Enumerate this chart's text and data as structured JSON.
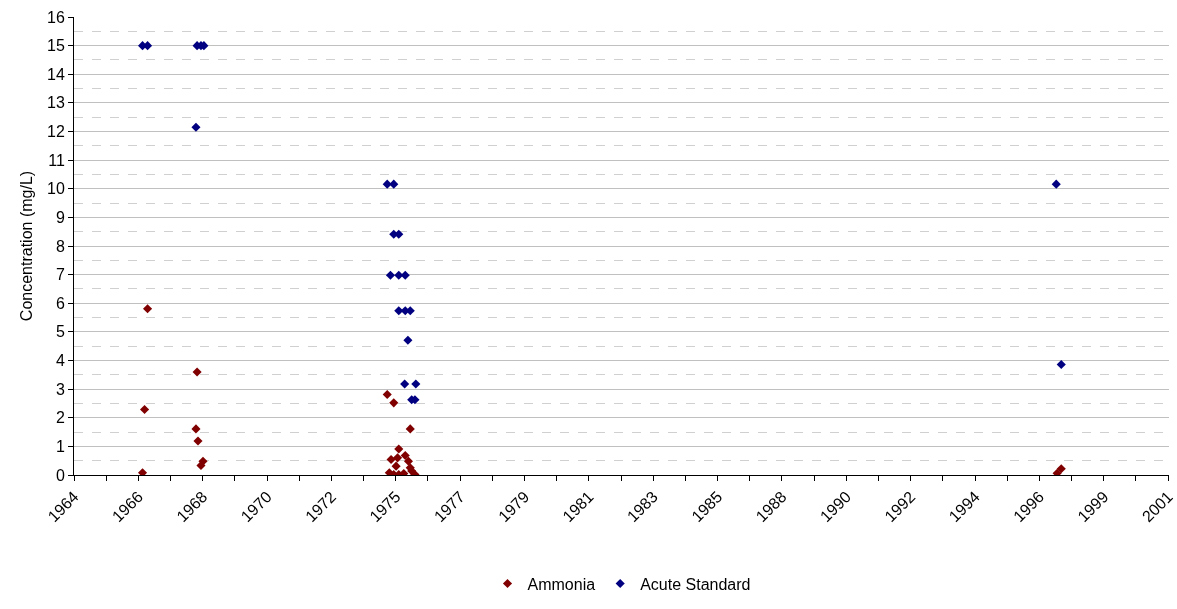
{
  "chart_data": {
    "type": "scatter",
    "ylabel": "Concentration (mg/L)",
    "xlim": [
      "1964-02-24",
      "2001-03-28"
    ],
    "xticks": [
      {
        "value": "1964-02-24",
        "label": "1964"
      },
      {
        "value": "1965-03-29",
        "label": null
      },
      {
        "value": "1966-04-30",
        "label": "1966"
      },
      {
        "value": "1967-06-02",
        "label": null
      },
      {
        "value": "1968-07-05",
        "label": "1968"
      },
      {
        "value": "1969-08-07",
        "label": null
      },
      {
        "value": "1970-09-09",
        "label": "1970"
      },
      {
        "value": "1971-10-12",
        "label": null
      },
      {
        "value": "1972-11-13",
        "label": "1972"
      },
      {
        "value": "1973-12-16",
        "label": null
      },
      {
        "value": "1975-01-18",
        "label": "1975"
      },
      {
        "value": "1976-02-20",
        "label": null
      },
      {
        "value": "1977-03-25",
        "label": "1977"
      },
      {
        "value": "1978-04-27",
        "label": null
      },
      {
        "value": "1979-05-30",
        "label": "1979"
      },
      {
        "value": "1980-07-01",
        "label": null
      },
      {
        "value": "1981-08-03",
        "label": "1981"
      },
      {
        "value": "1982-09-05",
        "label": null
      },
      {
        "value": "1983-10-08",
        "label": "1983"
      },
      {
        "value": "1984-11-10",
        "label": null
      },
      {
        "value": "1985-12-13",
        "label": "1985"
      },
      {
        "value": "1987-01-15",
        "label": null
      },
      {
        "value": "1988-02-17",
        "label": "1988"
      },
      {
        "value": "1989-03-21",
        "label": null
      },
      {
        "value": "1990-04-23",
        "label": "1990"
      },
      {
        "value": "1991-05-26",
        "label": null
      },
      {
        "value": "1992-06-27",
        "label": "1992"
      },
      {
        "value": "1993-07-31",
        "label": null
      },
      {
        "value": "1994-09-02",
        "label": "1994"
      },
      {
        "value": "1995-10-04",
        "label": null
      },
      {
        "value": "1996-11-06",
        "label": "1996"
      },
      {
        "value": "1997-12-09",
        "label": null
      },
      {
        "value": "1999-01-11",
        "label": "1999"
      },
      {
        "value": "2000-02-13",
        "label": null
      },
      {
        "value": "2001-03-18",
        "label": "2001"
      }
    ],
    "ylim": [
      0,
      16
    ],
    "yticks": [
      0,
      1,
      2,
      3,
      4,
      5,
      6,
      7,
      8,
      9,
      10,
      11,
      12,
      13,
      14,
      15,
      16
    ],
    "grid": "y",
    "legend": "bottom",
    "marker": "diamond",
    "series": [
      {
        "name": "Ammonia",
        "color": "#800000",
        "x": [
          "1966-06-21",
          "1966-07-16",
          "1966-08-22",
          "1968-04-12",
          "1968-04-26",
          "1968-05-07",
          "1968-06-13",
          "1968-07-08",
          "1974-10-04",
          "1974-10-30",
          "1974-11-21",
          "1974-12-24",
          "1974-12-24",
          "1975-01-22",
          "1975-02-09",
          "1975-02-24",
          "1975-02-24",
          "1975-04-27",
          "1975-05-15",
          "1975-06-24",
          "1975-07-16",
          "1975-07-16",
          "1975-08-03",
          "1975-09-12",
          "1997-06-13",
          "1997-08-03"
        ],
        "values": [
          0.08,
          2.29,
          5.81,
          1.61,
          3.6,
          1.19,
          0.33,
          0.48,
          2.81,
          0.08,
          0.54,
          2.52,
          0.02,
          0.31,
          0.6,
          0.91,
          0.02,
          0.05,
          0.68,
          0.48,
          1.61,
          0.25,
          0.14,
          0.02,
          0.06,
          0.22
        ]
      },
      {
        "name": "Acute Standard",
        "color": "#000080",
        "x": [
          "1966-06-21",
          "1966-08-22",
          "1968-04-12",
          "1968-04-26",
          "1968-06-13",
          "1968-07-19",
          "1974-10-04",
          "1974-12-24",
          "1974-12-24",
          "1975-02-24",
          "1974-11-13",
          "1975-02-24",
          "1975-05-15",
          "1975-02-24",
          "1975-05-15",
          "1975-07-16",
          "1975-06-17",
          "1975-05-08",
          "1975-09-23",
          "1975-08-03",
          "1975-09-12",
          "1997-06-02",
          "1997-08-03"
        ],
        "values": [
          15,
          15,
          12.15,
          15,
          15,
          15,
          10.16,
          10.16,
          8.41,
          8.41,
          6.98,
          6.98,
          6.98,
          5.74,
          5.74,
          5.74,
          4.71,
          3.18,
          3.18,
          2.63,
          2.63,
          10.16,
          3.86
        ]
      }
    ]
  }
}
